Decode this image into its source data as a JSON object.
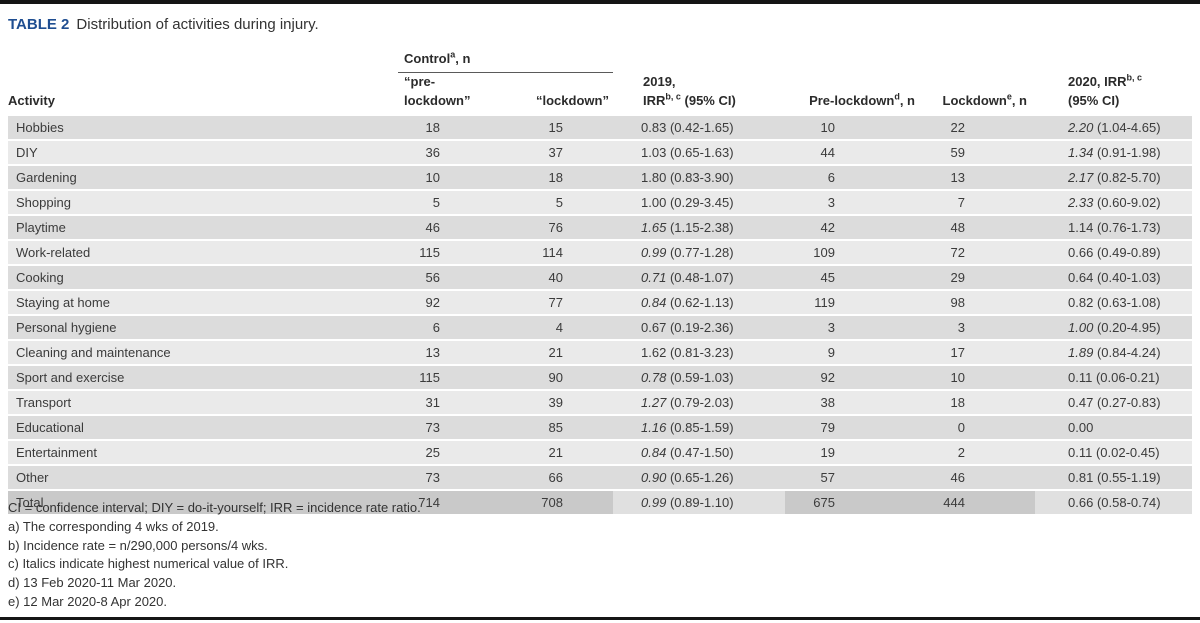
{
  "title": {
    "label": "TABLE 2",
    "text": "Distribution of activities during injury."
  },
  "header": {
    "activity": "Activity",
    "control": {
      "text": "Control",
      "sup": "a",
      "suffix": ", n"
    },
    "control_sub": [
      "“pre-lockdown”",
      "“lockdown”"
    ],
    "irr2019": {
      "line1": "2019,",
      "line2_text": "IRR",
      "sup": "b, c",
      "line2_suffix": " (95% CI)"
    },
    "pre_lockdown": {
      "text": "Pre-lockdown",
      "sup": "d",
      "suffix": ", n"
    },
    "lockdown": {
      "text": "Lockdown",
      "sup": "e",
      "suffix": ", n"
    },
    "irr2020": {
      "line1_text": "2020, IRR",
      "sup": "b, c",
      "line2": "(95% CI)"
    }
  },
  "rows": [
    {
      "activity": "Hobbies",
      "ctrl_pre": "18",
      "ctrl_lock": "15",
      "irr2019": "0.83",
      "ci2019": "(0.42-1.65)",
      "italic2019": false,
      "pre": "10",
      "lock": "22",
      "irr2020": "2.20",
      "ci2020": "(1.04-4.65)",
      "italic2020": true,
      "is_total": false
    },
    {
      "activity": "DIY",
      "ctrl_pre": "36",
      "ctrl_lock": "37",
      "irr2019": "1.03",
      "ci2019": "(0.65-1.63)",
      "italic2019": false,
      "pre": "44",
      "lock": "59",
      "irr2020": "1.34",
      "ci2020": "(0.91-1.98)",
      "italic2020": true,
      "is_total": false
    },
    {
      "activity": "Gardening",
      "ctrl_pre": "10",
      "ctrl_lock": "18",
      "irr2019": "1.80",
      "ci2019": "(0.83-3.90)",
      "italic2019": false,
      "pre": "6",
      "lock": "13",
      "irr2020": "2.17",
      "ci2020": "(0.82-5.70)",
      "italic2020": true,
      "is_total": false
    },
    {
      "activity": "Shopping",
      "ctrl_pre": "5",
      "ctrl_lock": "5",
      "irr2019": "1.00",
      "ci2019": "(0.29-3.45)",
      "italic2019": false,
      "pre": "3",
      "lock": "7",
      "irr2020": "2.33",
      "ci2020": "(0.60-9.02)",
      "italic2020": true,
      "is_total": false
    },
    {
      "activity": "Playtime",
      "ctrl_pre": "46",
      "ctrl_lock": "76",
      "irr2019": "1.65",
      "ci2019": "(1.15-2.38)",
      "italic2019": true,
      "pre": "42",
      "lock": "48",
      "irr2020": "1.14",
      "ci2020": "(0.76-1.73)",
      "italic2020": false,
      "is_total": false
    },
    {
      "activity": "Work-related",
      "ctrl_pre": "115",
      "ctrl_lock": "114",
      "irr2019": "0.99",
      "ci2019": "(0.77-1.28)",
      "italic2019": true,
      "pre": "109",
      "lock": "72",
      "irr2020": "0.66",
      "ci2020": "(0.49-0.89)",
      "italic2020": false,
      "is_total": false
    },
    {
      "activity": "Cooking",
      "ctrl_pre": "56",
      "ctrl_lock": "40",
      "irr2019": "0.71",
      "ci2019": "(0.48-1.07)",
      "italic2019": true,
      "pre": "45",
      "lock": "29",
      "irr2020": "0.64",
      "ci2020": "(0.40-1.03)",
      "italic2020": false,
      "is_total": false
    },
    {
      "activity": "Staying at home",
      "ctrl_pre": "92",
      "ctrl_lock": "77",
      "irr2019": "0.84",
      "ci2019": "(0.62-1.13)",
      "italic2019": true,
      "pre": "119",
      "lock": "98",
      "irr2020": "0.82",
      "ci2020": "(0.63-1.08)",
      "italic2020": false,
      "is_total": false
    },
    {
      "activity": "Personal hygiene",
      "ctrl_pre": "6",
      "ctrl_lock": "4",
      "irr2019": "0.67",
      "ci2019": "(0.19-2.36)",
      "italic2019": false,
      "pre": "3",
      "lock": "3",
      "irr2020": "1.00",
      "ci2020": "(0.20-4.95)",
      "italic2020": true,
      "is_total": false
    },
    {
      "activity": "Cleaning and maintenance",
      "ctrl_pre": "13",
      "ctrl_lock": "21",
      "irr2019": "1.62",
      "ci2019": "(0.81-3.23)",
      "italic2019": false,
      "pre": "9",
      "lock": "17",
      "irr2020": "1.89",
      "ci2020": "(0.84-4.24)",
      "italic2020": true,
      "is_total": false
    },
    {
      "activity": "Sport and exercise",
      "ctrl_pre": "115",
      "ctrl_lock": "90",
      "irr2019": "0.78",
      "ci2019": "(0.59-1.03)",
      "italic2019": true,
      "pre": "92",
      "lock": "10",
      "irr2020": "0.11",
      "ci2020": "(0.06-0.21)",
      "italic2020": false,
      "is_total": false
    },
    {
      "activity": "Transport",
      "ctrl_pre": "31",
      "ctrl_lock": "39",
      "irr2019": "1.27",
      "ci2019": "(0.79-2.03)",
      "italic2019": true,
      "pre": "38",
      "lock": "18",
      "irr2020": "0.47",
      "ci2020": "(0.27-0.83)",
      "italic2020": false,
      "is_total": false
    },
    {
      "activity": "Educational",
      "ctrl_pre": "73",
      "ctrl_lock": "85",
      "irr2019": "1.16",
      "ci2019": "(0.85-1.59)",
      "italic2019": true,
      "pre": "79",
      "lock": "0",
      "irr2020": "0.00",
      "ci2020": "",
      "italic2020": false,
      "is_total": false
    },
    {
      "activity": "Entertainment",
      "ctrl_pre": "25",
      "ctrl_lock": "21",
      "irr2019": "0.84",
      "ci2019": "(0.47-1.50)",
      "italic2019": true,
      "pre": "19",
      "lock": "2",
      "irr2020": "0.11",
      "ci2020": "(0.02-0.45)",
      "italic2020": false,
      "is_total": false
    },
    {
      "activity": "Other",
      "ctrl_pre": "73",
      "ctrl_lock": "66",
      "irr2019": "0.90",
      "ci2019": "(0.65-1.26)",
      "italic2019": true,
      "pre": "57",
      "lock": "46",
      "irr2020": "0.81",
      "ci2020": "(0.55-1.19)",
      "italic2020": false,
      "is_total": false
    },
    {
      "activity": "Total",
      "ctrl_pre": "714",
      "ctrl_lock": "708",
      "irr2019": "0.99",
      "ci2019": "(0.89-1.10)",
      "italic2019": true,
      "pre": "675",
      "lock": "444",
      "irr2020": "0.66",
      "ci2020": "(0.58-0.74)",
      "italic2020": false,
      "is_total": true
    }
  ],
  "footnotes": [
    "CI = confidence interval; DIY = do-it-yourself; IRR = incidence rate ratio.",
    "a) The corresponding 4 wks of 2019.",
    "b) Incidence rate = n/290,000 persons/4 wks.",
    "c) Italics indicate highest numerical value of IRR.",
    "d) 13 Feb 2020-11 Mar 2020.",
    "e) 12 Mar 2020-8 Apr 2020."
  ],
  "colors": {
    "title_accent": "#1f4e91",
    "row_odd": "#dcdcdc",
    "row_even": "#eaeaea",
    "total_highlight": "#c9c9c9",
    "rule": "#151515"
  }
}
